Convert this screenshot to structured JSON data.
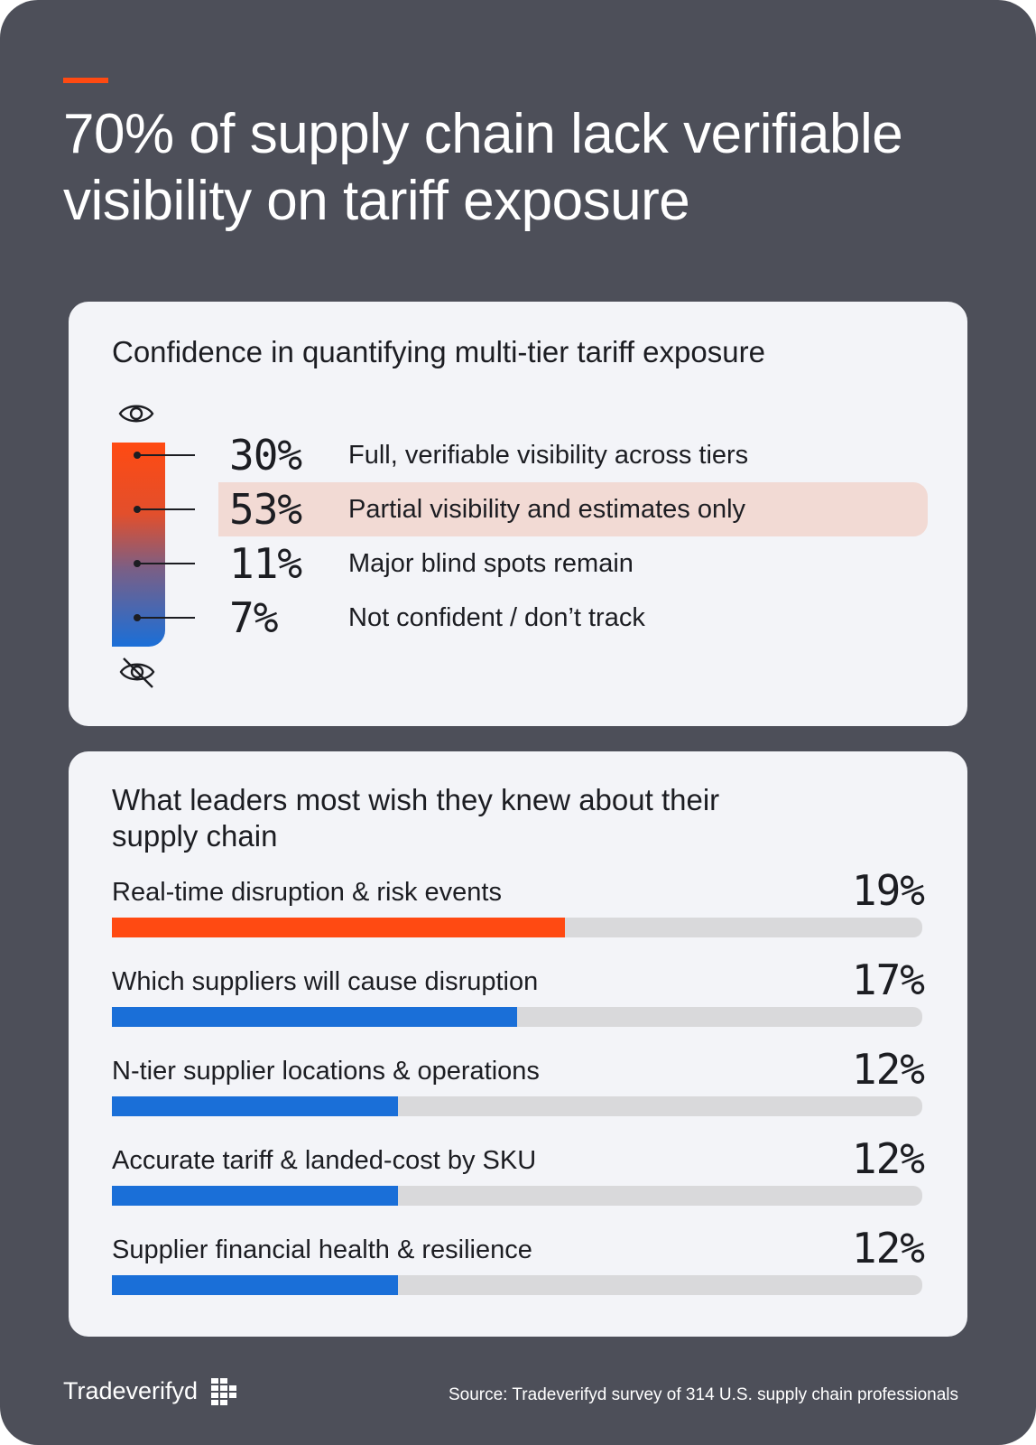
{
  "headline": "70% of supply chain lack verifiable visibility on tariff exposure",
  "confidence": {
    "title": "Confidence in quantifying multi-tier tariff exposure",
    "top_icon": "eye-icon",
    "bottom_icon": "eye-off-icon",
    "highlight_color": "#f2dad4",
    "items": [
      {
        "value": "30%",
        "label": "Full, verifiable visibility across tiers"
      },
      {
        "value": "53%",
        "label": "Partial visibility and estimates only"
      },
      {
        "value": "11%",
        "label": "Major blind spots remain"
      },
      {
        "value": "7%",
        "label": "Not confident / don’t track"
      }
    ]
  },
  "wishes": {
    "title": "What leaders most wish they knew about their supply chain",
    "items": [
      {
        "label": "Real-time disruption & risk events",
        "value": "19%"
      },
      {
        "label": "Which suppliers will cause disruption",
        "value": "17%"
      },
      {
        "label": "N-tier supplier locations & operations",
        "value": "12%"
      },
      {
        "label": "Accurate tariff & landed-cost by SKU",
        "value": "12%"
      },
      {
        "label": "Supplier financial health & resilience",
        "value": "12%"
      }
    ]
  },
  "colors": {
    "background": "#4d4f59",
    "accent": "#ff4a12",
    "blue": "#1a6fd8",
    "track": "#d9d9db"
  },
  "chart_data": [
    {
      "type": "bar",
      "title": "Confidence in quantifying multi-tier tariff exposure",
      "categories": [
        "Full, verifiable visibility across tiers",
        "Partial visibility and estimates only",
        "Major blind spots remain",
        "Not confident / don’t track"
      ],
      "values": [
        30,
        53,
        11,
        7
      ],
      "highlighted_category": "Partial visibility and estimates only",
      "unit": "%"
    },
    {
      "type": "bar",
      "orientation": "horizontal",
      "title": "What leaders most wish they knew about their supply chain",
      "categories": [
        "Real-time disruption & risk events",
        "Which suppliers will cause disruption",
        "N-tier supplier locations & operations",
        "Accurate tariff & landed-cost by SKU",
        "Supplier financial health & resilience"
      ],
      "values": [
        19,
        17,
        12,
        12,
        12
      ],
      "xlim": [
        0,
        34
      ],
      "bar_colors": [
        "#ff4a12",
        "#1a6fd8",
        "#1a6fd8",
        "#1a6fd8",
        "#1a6fd8"
      ],
      "unit": "%"
    }
  ],
  "footer": {
    "brand": "Tradeverifyd",
    "brand_icon": "tradeverifyd-logo-icon",
    "source": "Source: Tradeverifyd survey of 314 U.S. supply chain professionals"
  }
}
